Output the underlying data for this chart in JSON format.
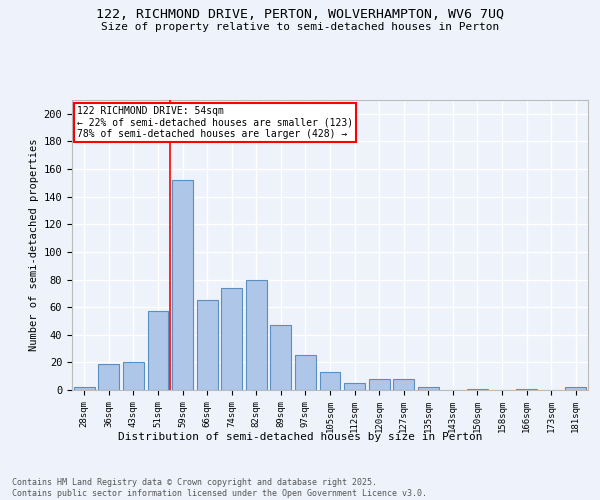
{
  "title1": "122, RICHMOND DRIVE, PERTON, WOLVERHAMPTON, WV6 7UQ",
  "title2": "Size of property relative to semi-detached houses in Perton",
  "xlabel": "Distribution of semi-detached houses by size in Perton",
  "ylabel": "Number of semi-detached properties",
  "footer1": "Contains HM Land Registry data © Crown copyright and database right 2025.",
  "footer2": "Contains public sector information licensed under the Open Government Licence v3.0.",
  "categories": [
    "28sqm",
    "36sqm",
    "43sqm",
    "51sqm",
    "59sqm",
    "66sqm",
    "74sqm",
    "82sqm",
    "89sqm",
    "97sqm",
    "105sqm",
    "112sqm",
    "120sqm",
    "127sqm",
    "135sqm",
    "143sqm",
    "150sqm",
    "158sqm",
    "166sqm",
    "173sqm",
    "181sqm"
  ],
  "values": [
    2,
    19,
    20,
    57,
    152,
    65,
    74,
    80,
    47,
    25,
    13,
    5,
    8,
    8,
    2,
    0,
    1,
    0,
    1,
    0,
    2
  ],
  "bar_color": "#aec6e8",
  "bar_edge_color": "#5a8fc2",
  "bg_color": "#eef3fb",
  "grid_color": "#ffffff",
  "vline_x_index": 3.5,
  "annotation_title": "122 RICHMOND DRIVE: 54sqm",
  "annotation_line1": "← 22% of semi-detached houses are smaller (123)",
  "annotation_line2": "78% of semi-detached houses are larger (428) →",
  "ylim": [
    0,
    210
  ],
  "yticks": [
    0,
    20,
    40,
    60,
    80,
    100,
    120,
    140,
    160,
    180,
    200
  ]
}
